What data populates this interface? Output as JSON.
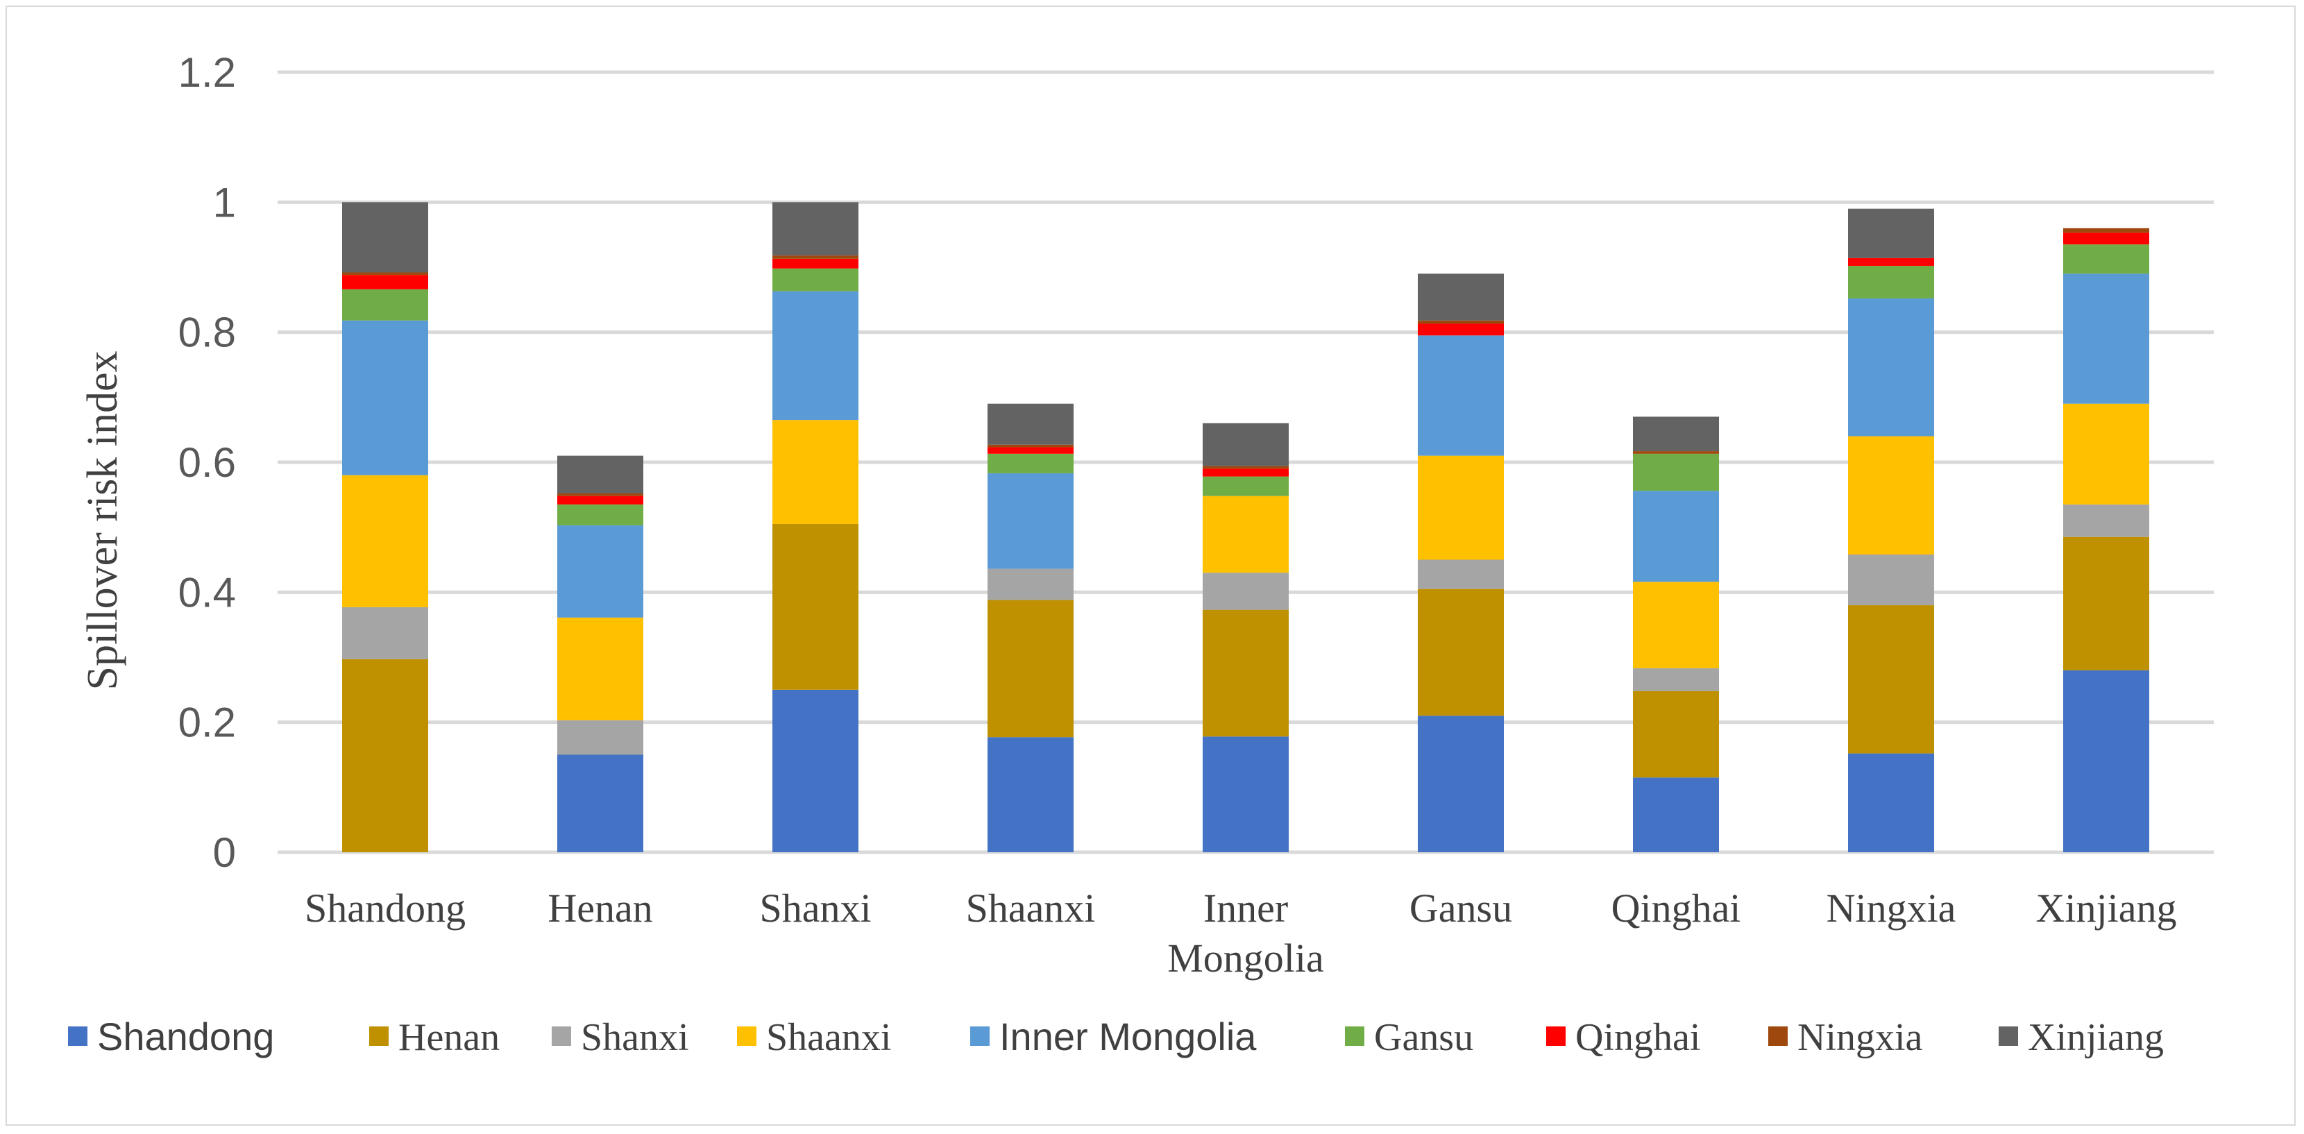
{
  "chart_data": {
    "type": "stacked-bar",
    "title": "",
    "xlabel": "",
    "ylabel": "Spillover risk index",
    "ylim": [
      0,
      1.2
    ],
    "yticks": [
      "0",
      "0.2",
      "0.4",
      "0.6",
      "0.8",
      "1",
      "1.2"
    ],
    "grid": true,
    "legend_position": "bottom",
    "categories": [
      "Shandong",
      "Henan",
      "Shanxi",
      "Shaanxi",
      "Inner Mongolia",
      "Gansu",
      "Qinghai",
      "Ningxia",
      "Xinjiang"
    ],
    "category_lines": [
      [
        "Shandong"
      ],
      [
        "Henan"
      ],
      [
        "Shanxi"
      ],
      [
        "Shaanxi"
      ],
      [
        "Inner",
        "Mongolia"
      ],
      [
        "Gansu"
      ],
      [
        "Qinghai"
      ],
      [
        "Ningxia"
      ],
      [
        "Xinjiang"
      ]
    ],
    "series": [
      {
        "name": "Shandong",
        "color": "#4472c4",
        "values": [
          0.0,
          0.15,
          0.25,
          0.177,
          0.178,
          0.21,
          0.115,
          0.152,
          0.28
        ]
      },
      {
        "name": "Henan",
        "color": "#bf9000",
        "values": [
          0.297,
          0.0,
          0.255,
          0.211,
          0.195,
          0.195,
          0.133,
          0.228,
          0.205
        ]
      },
      {
        "name": "Shanxi",
        "color": "#a5a5a5",
        "values": [
          0.08,
          0.053,
          0.0,
          0.048,
          0.057,
          0.045,
          0.035,
          0.078,
          0.05
        ]
      },
      {
        "name": "Shaanxi",
        "color": "#ffc000",
        "values": [
          0.203,
          0.158,
          0.16,
          0.0,
          0.118,
          0.16,
          0.133,
          0.182,
          0.155
        ]
      },
      {
        "name": "Inner Mongolia",
        "color": "#5b9bd5",
        "values": [
          0.238,
          0.142,
          0.198,
          0.147,
          0.0,
          0.185,
          0.14,
          0.212,
          0.2
        ]
      },
      {
        "name": "Gansu",
        "color": "#70ad47",
        "values": [
          0.048,
          0.032,
          0.035,
          0.03,
          0.03,
          0.0,
          0.057,
          0.05,
          0.045
        ]
      },
      {
        "name": "Qinghai",
        "color": "#ff0000",
        "values": [
          0.022,
          0.013,
          0.015,
          0.01,
          0.012,
          0.018,
          0.0,
          0.012,
          0.018
        ]
      },
      {
        "name": "Ningxia",
        "color": "#9e480e",
        "values": [
          0.004,
          0.004,
          0.005,
          0.004,
          0.004,
          0.005,
          0.004,
          0.0,
          0.007
        ]
      },
      {
        "name": "Xinjiang",
        "color": "#636363",
        "values": [
          0.108,
          0.058,
          0.082,
          0.063,
          0.066,
          0.072,
          0.053,
          0.076,
          0.0
        ]
      }
    ]
  }
}
